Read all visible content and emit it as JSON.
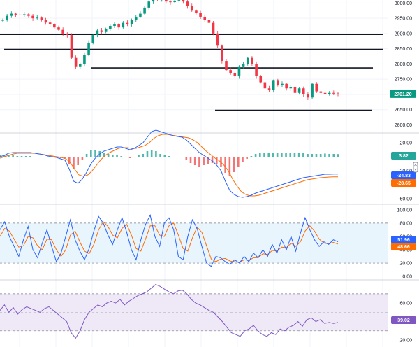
{
  "chart_data": [
    {
      "type": "candlestick",
      "pane": "price",
      "y_ticks": [
        "3000.00",
        "2950.00",
        "2900.00",
        "2850.00",
        "2800.00",
        "2750.00",
        "2700.00",
        "2650.00",
        "2600.00"
      ],
      "ylim": [
        2585,
        3010
      ],
      "last_value_label": "2701.20",
      "last_value": 2701.2,
      "horizontal_levels": [
        2897,
        2848,
        2787,
        2648
      ],
      "close_path": [
        2945,
        2958,
        2965,
        2962,
        2960,
        2963,
        2958,
        2950,
        2952,
        2945,
        2936,
        2930,
        2920,
        2912,
        2900,
        2895,
        2820,
        2790,
        2800,
        2830,
        2870,
        2895,
        2910,
        2905,
        2915,
        2925,
        2930,
        2920,
        2935,
        2930,
        2945,
        2955,
        2965,
        2985,
        3005,
        3015,
        3010,
        3012,
        3005,
        3003,
        3008,
        3012,
        3005,
        2990,
        2975,
        2968,
        2955,
        2945,
        2935,
        2900,
        2860,
        2810,
        2780,
        2770,
        2760,
        2790,
        2800,
        2820,
        2800,
        2760,
        2740,
        2720,
        2715,
        2745,
        2730,
        2735,
        2720,
        2725,
        2705,
        2720,
        2700,
        2690,
        2735,
        2710,
        2705,
        2700,
        2705,
        2703,
        2701
      ]
    },
    {
      "type": "macd",
      "pane": "macd",
      "y_ticks": [
        "20.00",
        "0.00",
        "-20.00",
        "-40.00",
        "-60.00"
      ],
      "ylim": [
        -63,
        27
      ],
      "badges": [
        "3.82",
        "-24.83",
        "-28.65"
      ],
      "colors": {
        "macd": "#2962ff",
        "signal": "#ff6d00",
        "hist_pos": "#26a69a",
        "hist_neg": "#ef5350"
      },
      "macd_values": [
        0,
        2,
        5,
        6,
        6,
        6,
        6,
        6,
        5,
        4,
        3,
        1,
        0,
        -1,
        -3,
        -5,
        -18,
        -35,
        -38,
        -32,
        -22,
        -10,
        -2,
        4,
        8,
        10,
        12,
        14,
        14,
        12,
        10,
        12,
        16,
        20,
        28,
        36,
        38,
        36,
        34,
        32,
        30,
        29,
        28,
        24,
        18,
        12,
        6,
        2,
        -2,
        -6,
        -12,
        -20,
        -35,
        -48,
        -54,
        -57,
        -58,
        -57,
        -55,
        -52,
        -50,
        -48,
        -46,
        -44,
        -42,
        -40,
        -38,
        -36,
        -34,
        -32,
        -30,
        -29,
        -28,
        -27,
        -26,
        -25,
        -25,
        -24.8,
        -24.83
      ],
      "signal_values": [
        -2,
        0,
        2,
        4,
        5,
        5,
        5,
        5,
        5,
        4,
        3,
        2,
        1,
        0,
        -1,
        -3,
        -8,
        -18,
        -26,
        -28,
        -26,
        -20,
        -12,
        -4,
        2,
        6,
        9,
        12,
        13,
        13,
        12,
        12,
        14,
        16,
        20,
        26,
        30,
        32,
        32,
        31,
        30,
        29,
        28,
        27,
        24,
        20,
        14,
        8,
        3,
        -2,
        -6,
        -12,
        -20,
        -32,
        -42,
        -50,
        -54,
        -56,
        -56,
        -55,
        -53,
        -51,
        -49,
        -47,
        -45,
        -43,
        -41,
        -39,
        -37,
        -35,
        -33,
        -32,
        -31,
        -30,
        -29.5,
        -29,
        -28.8,
        -28.65
      ]
    },
    {
      "type": "stochastic",
      "pane": "stoch",
      "y_ticks": [
        "100.00",
        "80.00",
        "60.00",
        "40.00",
        "20.00",
        "0.00"
      ],
      "ylim": [
        -2,
        103
      ],
      "band": [
        20,
        80
      ],
      "badges": [
        "51.96",
        "48.66"
      ],
      "colors": {
        "k": "#2962ff",
        "d": "#ff6d00",
        "band": "#e3f2fd"
      },
      "k_values": [
        70,
        82,
        60,
        45,
        30,
        55,
        75,
        40,
        28,
        50,
        70,
        45,
        22,
        35,
        60,
        85,
        55,
        38,
        25,
        42,
        68,
        90,
        80,
        62,
        48,
        70,
        88,
        66,
        40,
        25,
        55,
        78,
        92,
        60,
        45,
        80,
        88,
        70,
        30,
        25,
        60,
        85,
        72,
        45,
        20,
        15,
        30,
        28,
        22,
        18,
        25,
        20,
        30,
        22,
        35,
        28,
        40,
        30,
        48,
        35,
        55,
        40,
        60,
        38,
        65,
        88,
        70,
        55,
        45,
        52,
        48,
        55,
        51.96
      ],
      "d_values": [
        60,
        72,
        68,
        56,
        44,
        46,
        60,
        58,
        46,
        40,
        56,
        55,
        40,
        30,
        40,
        62,
        68,
        52,
        38,
        34,
        48,
        70,
        82,
        75,
        62,
        58,
        72,
        78,
        62,
        42,
        38,
        56,
        76,
        76,
        62,
        60,
        76,
        80,
        62,
        42,
        38,
        58,
        74,
        66,
        46,
        26,
        22,
        26,
        27,
        23,
        22,
        21,
        25,
        24,
        28,
        28,
        34,
        33,
        39,
        38,
        44,
        43,
        50,
        45,
        52,
        68,
        76,
        68,
        56,
        50,
        49,
        51,
        48.66
      ]
    },
    {
      "type": "line",
      "pane": "rsi",
      "y_ticks": [
        "60.00",
        "20.00"
      ],
      "ylim": [
        14,
        82
      ],
      "band": [
        30,
        70
      ],
      "badges": [
        "39.02"
      ],
      "colors": {
        "line": "#7e57c2",
        "band": "#ede7f6"
      },
      "values": [
        52,
        58,
        50,
        55,
        48,
        53,
        56,
        54,
        52,
        50,
        54,
        56,
        52,
        48,
        44,
        40,
        28,
        22,
        30,
        42,
        50,
        54,
        58,
        56,
        60,
        62,
        60,
        64,
        58,
        62,
        65,
        68,
        70,
        72,
        76,
        80,
        78,
        75,
        72,
        70,
        73,
        74,
        70,
        64,
        60,
        58,
        55,
        52,
        50,
        45,
        40,
        34,
        28,
        26,
        24,
        30,
        32,
        36,
        30,
        26,
        24,
        28,
        26,
        32,
        30,
        34,
        36,
        40,
        35,
        42,
        44,
        40,
        42,
        38,
        39,
        38,
        39.02
      ]
    }
  ],
  "icons": {
    "collapse": "chevron-icon"
  }
}
